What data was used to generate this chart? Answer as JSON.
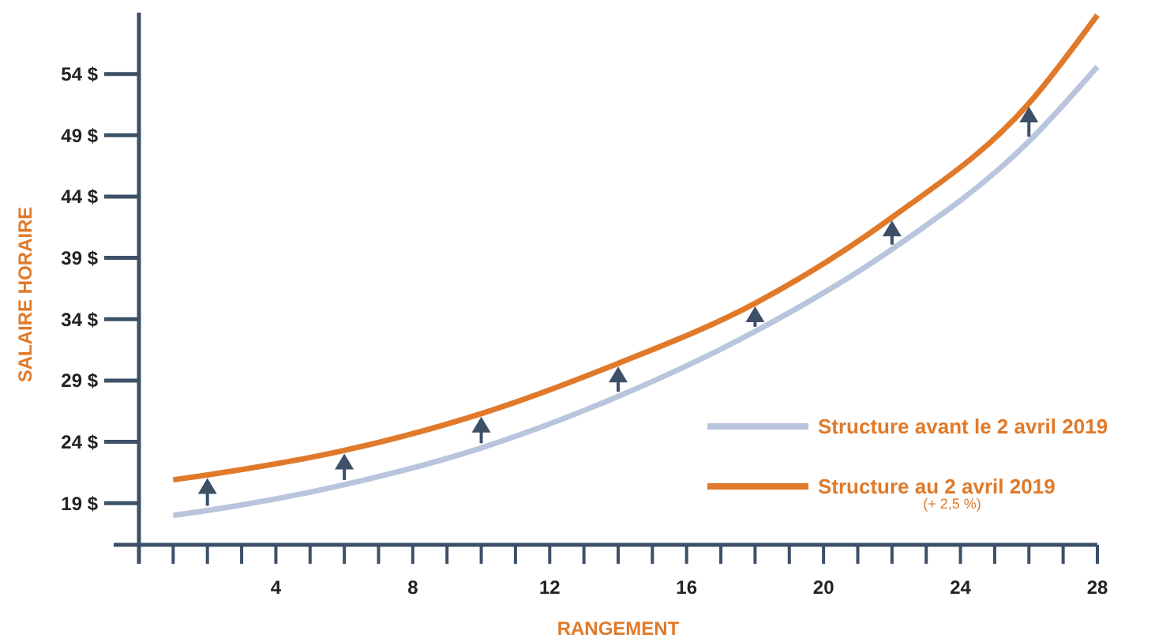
{
  "chart_data": {
    "type": "line",
    "xlabel": "RANGEMENT",
    "ylabel": "SALAIRE HORAIRE",
    "x": [
      1,
      2,
      6,
      10,
      14,
      18,
      22,
      26,
      28
    ],
    "series": [
      {
        "name": "Structure avant le 2 avril 2019",
        "color": "#b8c5dc",
        "values": [
          18.0,
          18.4,
          20.5,
          23.5,
          27.7,
          33.0,
          39.7,
          48.5,
          54.6
        ]
      },
      {
        "name": "Structure au 2 avril 2019",
        "color": "#e07a2a",
        "values": [
          20.9,
          21.3,
          23.3,
          26.3,
          30.4,
          35.3,
          42.3,
          51.6,
          58.8
        ]
      }
    ],
    "xlim": [
      0,
      28
    ],
    "ylim": [
      15.6,
      59
    ],
    "xticks": [
      {
        "value": 0,
        "label": null
      },
      {
        "value": 1,
        "label": null
      },
      {
        "value": 2,
        "label": null
      },
      {
        "value": 3,
        "label": null
      },
      4,
      {
        "value": 5,
        "label": null
      },
      {
        "value": 6,
        "label": null
      },
      {
        "value": 7,
        "label": null
      },
      8,
      {
        "value": 9,
        "label": null
      },
      {
        "value": 10,
        "label": null
      },
      {
        "value": 11,
        "label": null
      },
      12,
      {
        "value": 13,
        "label": null
      },
      {
        "value": 14,
        "label": null
      },
      {
        "value": 15,
        "label": null
      },
      16,
      {
        "value": 17,
        "label": null
      },
      {
        "value": 18,
        "label": null
      },
      {
        "value": 19,
        "label": null
      },
      20,
      {
        "value": 21,
        "label": null
      },
      {
        "value": 22,
        "label": null
      },
      {
        "value": 23,
        "label": null
      },
      24,
      {
        "value": 25,
        "label": null
      },
      {
        "value": 26,
        "label": null
      },
      {
        "value": 27,
        "label": null
      },
      28
    ],
    "yticks": [
      {
        "value": 19,
        "label": "19 $"
      },
      {
        "value": 24,
        "label": "24 $"
      },
      {
        "value": 29,
        "label": "29 $"
      },
      {
        "value": 34,
        "label": "34 $"
      },
      {
        "value": 39,
        "label": "39 $"
      },
      {
        "value": 44,
        "label": "44 $"
      },
      {
        "value": 49,
        "label": "49 $"
      },
      {
        "value": 54,
        "label": "54 $"
      }
    ],
    "legend": "bottom right",
    "grid": false,
    "marker": "none",
    "line_style": "solid",
    "annotations": [
      "(+ 2,5 %)"
    ]
  }
}
